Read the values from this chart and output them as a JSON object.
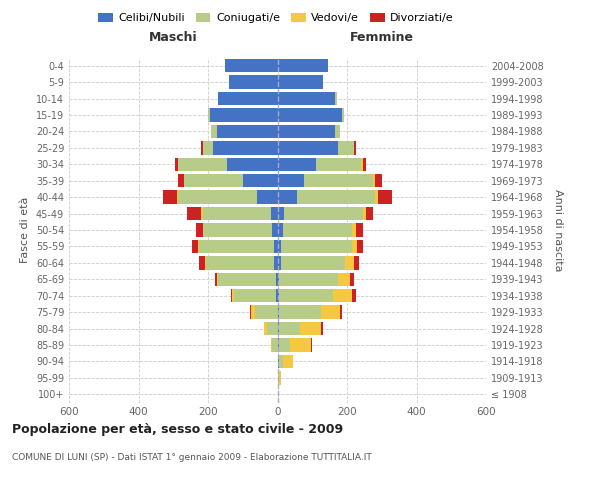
{
  "age_groups": [
    "100+",
    "95-99",
    "90-94",
    "85-89",
    "80-84",
    "75-79",
    "70-74",
    "65-69",
    "60-64",
    "55-59",
    "50-54",
    "45-49",
    "40-44",
    "35-39",
    "30-34",
    "25-29",
    "20-24",
    "15-19",
    "10-14",
    "5-9",
    "0-4"
  ],
  "birth_years": [
    "≤ 1908",
    "1909-1913",
    "1914-1918",
    "1919-1923",
    "1924-1928",
    "1929-1933",
    "1934-1938",
    "1939-1943",
    "1944-1948",
    "1949-1953",
    "1954-1958",
    "1959-1963",
    "1964-1968",
    "1969-1973",
    "1974-1978",
    "1979-1983",
    "1984-1988",
    "1989-1993",
    "1994-1998",
    "1999-2003",
    "2004-2008"
  ],
  "male_celibi": [
    0,
    0,
    0,
    0,
    0,
    0,
    5,
    5,
    10,
    10,
    15,
    20,
    60,
    100,
    145,
    185,
    175,
    195,
    170,
    140,
    150
  ],
  "male_coniugati": [
    0,
    0,
    0,
    15,
    30,
    65,
    120,
    165,
    195,
    215,
    200,
    195,
    225,
    170,
    140,
    30,
    15,
    5,
    0,
    0,
    0
  ],
  "male_vedovi": [
    0,
    0,
    0,
    5,
    10,
    10,
    5,
    5,
    5,
    5,
    0,
    5,
    5,
    0,
    0,
    0,
    0,
    0,
    0,
    0,
    0
  ],
  "male_divorziati": [
    0,
    0,
    0,
    0,
    0,
    5,
    5,
    5,
    15,
    15,
    20,
    40,
    40,
    15,
    10,
    5,
    0,
    0,
    0,
    0,
    0
  ],
  "fem_nubili": [
    0,
    0,
    5,
    5,
    5,
    5,
    5,
    5,
    10,
    10,
    15,
    20,
    55,
    75,
    110,
    175,
    165,
    185,
    165,
    130,
    145
  ],
  "fem_coniugate": [
    0,
    5,
    10,
    30,
    60,
    120,
    155,
    170,
    185,
    205,
    200,
    225,
    225,
    200,
    130,
    45,
    15,
    5,
    5,
    0,
    0
  ],
  "fem_vedove": [
    0,
    5,
    30,
    60,
    60,
    55,
    55,
    35,
    25,
    15,
    10,
    10,
    10,
    5,
    5,
    0,
    0,
    0,
    0,
    0,
    0
  ],
  "fem_divorziate": [
    0,
    0,
    0,
    5,
    5,
    5,
    10,
    10,
    15,
    15,
    20,
    20,
    40,
    20,
    10,
    5,
    0,
    0,
    0,
    0,
    0
  ],
  "color_cel": "#4472c4",
  "color_con": "#b8cc8a",
  "color_ved": "#f5c842",
  "color_div": "#cc2222",
  "title": "Popolazione per età, sesso e stato civile - 2009",
  "subtitle": "COMUNE DI LUNI (SP) - Dati ISTAT 1° gennaio 2009 - Elaborazione TUTTITALIA.IT",
  "legend_labels": [
    "Celibi/Nubili",
    "Coniugati/e",
    "Vedovi/e",
    "Divorziati/e"
  ],
  "ylabel_left": "Fasce di età",
  "ylabel_right": "Anni di nascita",
  "header_male": "Maschi",
  "header_female": "Femmine",
  "xlim": 600,
  "xticks": [
    -600,
    -400,
    -200,
    0,
    200,
    400,
    600
  ]
}
